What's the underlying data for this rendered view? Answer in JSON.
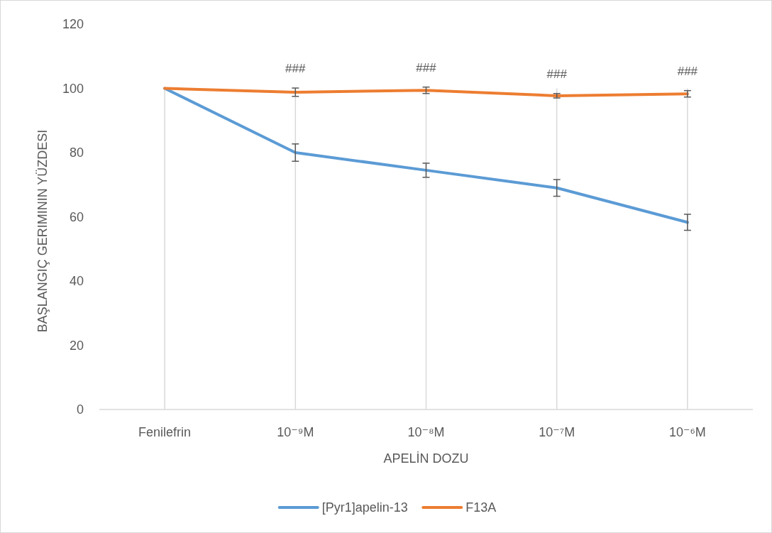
{
  "chart_data": {
    "type": "line",
    "xlabel": "APELİN DOZU",
    "ylabel": "BAŞLANGIÇ GERIMININ YÜZDESI",
    "categories": [
      "Fenilefrin",
      "10⁻⁹M",
      "10⁻⁸M",
      "10⁻⁷M",
      "10⁻⁶M"
    ],
    "series": [
      {
        "name": "[Pyr1]apelin-13",
        "color": "#5b9bd5",
        "values": [
          100,
          80,
          74.5,
          69,
          58.3
        ],
        "errors": [
          null,
          2.7,
          2.2,
          2.6,
          2.5
        ]
      },
      {
        "name": "F13A",
        "color": "#ed7d31",
        "values": [
          100,
          98.8,
          99.4,
          97.7,
          98.3
        ],
        "errors": [
          null,
          1.3,
          1,
          0.7,
          1
        ]
      }
    ],
    "ylim": [
      0,
      120
    ],
    "yticks": [
      0,
      20,
      40,
      60,
      80,
      100,
      120
    ],
    "grid": "x",
    "legend": "bottom",
    "marker": "none",
    "line_style": "solid",
    "annotations": [
      "###",
      "###",
      "###",
      "###"
    ]
  }
}
